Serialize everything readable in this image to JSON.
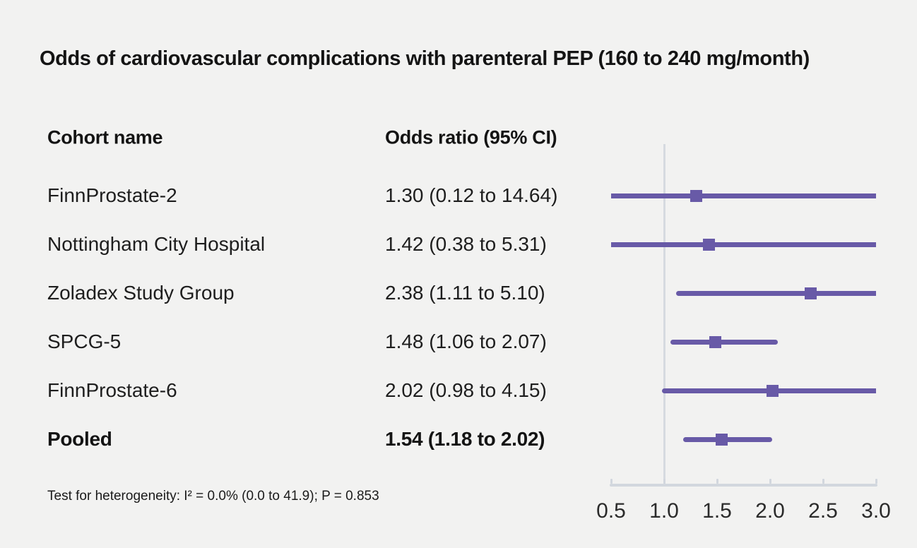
{
  "title": "Odds of cardiovascular complications with parenteral PEP (160 to 240 mg/month)",
  "columns": {
    "cohort": "Cohort name",
    "odds_ratio": "Odds ratio (95% CI)"
  },
  "footnote": "Test for heterogeneity: I² = 0.0% (0.0 to 41.9); P = 0.853",
  "colors": {
    "accent": "#685aa7",
    "axis_line": "#d2d7de",
    "reference_line": "#d6dae0",
    "background": "#f2f2f1"
  },
  "chart_data": {
    "type": "forest",
    "orientation": "horizontal",
    "xlabel": "",
    "xlim": [
      0.5,
      3.0
    ],
    "reference_line": 1.0,
    "x_ticks": [
      0.5,
      1.0,
      1.5,
      2.0,
      2.5,
      3.0
    ],
    "x_tick_labels": [
      "0.5",
      "1.0",
      "1.5",
      "2.0",
      "2.5",
      "3.0"
    ],
    "rows": [
      {
        "name": "FinnProstate-2",
        "or": 1.3,
        "ci_low": 0.12,
        "ci_high": 14.64,
        "label": "1.30 (0.12 to 14.64)",
        "pooled": false
      },
      {
        "name": "Nottingham City Hospital",
        "or": 1.42,
        "ci_low": 0.38,
        "ci_high": 5.31,
        "label": "1.42 (0.38 to 5.31)",
        "pooled": false
      },
      {
        "name": "Zoladex Study Group",
        "or": 2.38,
        "ci_low": 1.11,
        "ci_high": 5.1,
        "label": "2.38 (1.11 to 5.10)",
        "pooled": false
      },
      {
        "name": "SPCG-5",
        "or": 1.48,
        "ci_low": 1.06,
        "ci_high": 2.07,
        "label": "1.48 (1.06 to 2.07)",
        "pooled": false
      },
      {
        "name": "FinnProstate-6",
        "or": 2.02,
        "ci_low": 0.98,
        "ci_high": 4.15,
        "label": "2.02 (0.98 to 4.15)",
        "pooled": false
      },
      {
        "name": "Pooled",
        "or": 1.54,
        "ci_low": 1.18,
        "ci_high": 2.02,
        "label": "1.54 (1.18 to 2.02)",
        "pooled": true
      }
    ]
  }
}
